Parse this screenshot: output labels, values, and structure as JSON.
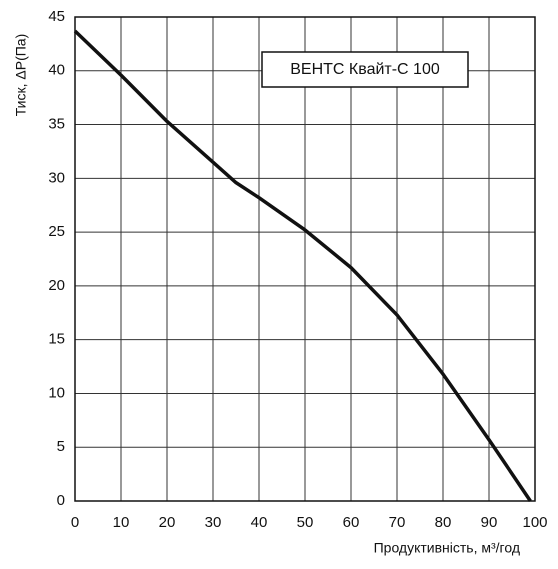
{
  "chart_data": {
    "type": "line",
    "x_label": "Продуктивність, м³/год",
    "y_label": "Тиск, ΔP(Па)",
    "annotation": "ВЕНТС Квайт-С 100",
    "x": [
      0,
      10,
      20,
      30,
      35,
      40,
      50,
      60,
      70,
      80,
      90,
      99
    ],
    "series": [
      {
        "color": "#111111",
        "values": [
          43.7,
          39.6,
          35.3,
          31.5,
          29.6,
          28.2,
          25.2,
          21.7,
          17.3,
          11.8,
          5.7,
          0
        ]
      }
    ],
    "xlim": [
      0,
      100
    ],
    "xticks": [
      0,
      10,
      20,
      30,
      40,
      50,
      60,
      70,
      80,
      90,
      100
    ],
    "ylim": [
      0,
      45
    ],
    "yticks": [
      0,
      5,
      10,
      15,
      20,
      25,
      30,
      35,
      40,
      45
    ],
    "grid": true
  }
}
